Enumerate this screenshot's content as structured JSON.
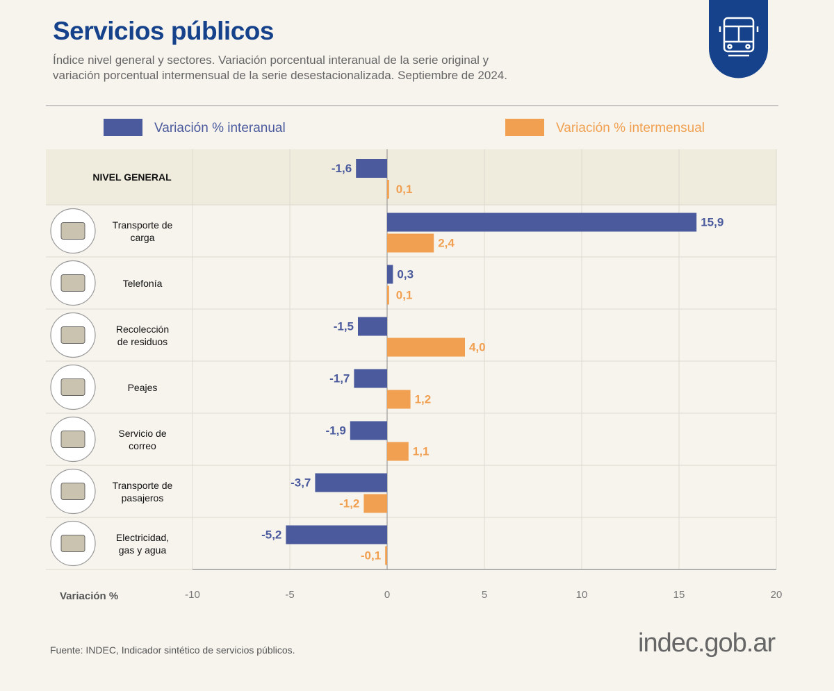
{
  "chart_data": {
    "type": "barh",
    "title": "Servicios públicos",
    "subtitle": "Índice nivel general y sectores. Variación porcentual interanual de la serie original y variación porcentual intermensual de la serie desestacionalizada. Septiembre de 2024.",
    "x_label": "Variación %",
    "categories": [
      "NIVEL GENERAL",
      "Transporte de carga",
      "Telefonía",
      "Recolección de residuos",
      "Peajes",
      "Servicio de correo",
      "Transporte de pasajeros",
      "Electricidad, gas y agua"
    ],
    "series": [
      {
        "name": "Variación % interanual",
        "color": "#4a5a9c",
        "values": [
          -1.6,
          15.9,
          0.3,
          -1.5,
          -1.7,
          -1.9,
          -3.7,
          -5.2
        ],
        "value_labels": [
          "-1,6",
          "15,9",
          "0,3",
          "-1,5",
          "-1,7",
          "-1,9",
          "-3,7",
          "-5,2"
        ]
      },
      {
        "name": "Variación % intermensual",
        "color": "#f0a050",
        "values": [
          0.1,
          2.4,
          0.1,
          4.0,
          1.2,
          1.1,
          -1.2,
          -0.1
        ],
        "value_labels": [
          "0,1",
          "2,4",
          "0,1",
          "4,0",
          "1,2",
          "1,1",
          "-1,2",
          "-0,1"
        ]
      }
    ],
    "xlim": [
      -10,
      20
    ],
    "xticks": [
      -10,
      -5,
      0,
      5,
      10,
      15,
      20
    ],
    "grid": true,
    "source": "Fuente: INDEC, Indicador sintético de servicios públicos.",
    "logo": "indec.gob.ar"
  }
}
